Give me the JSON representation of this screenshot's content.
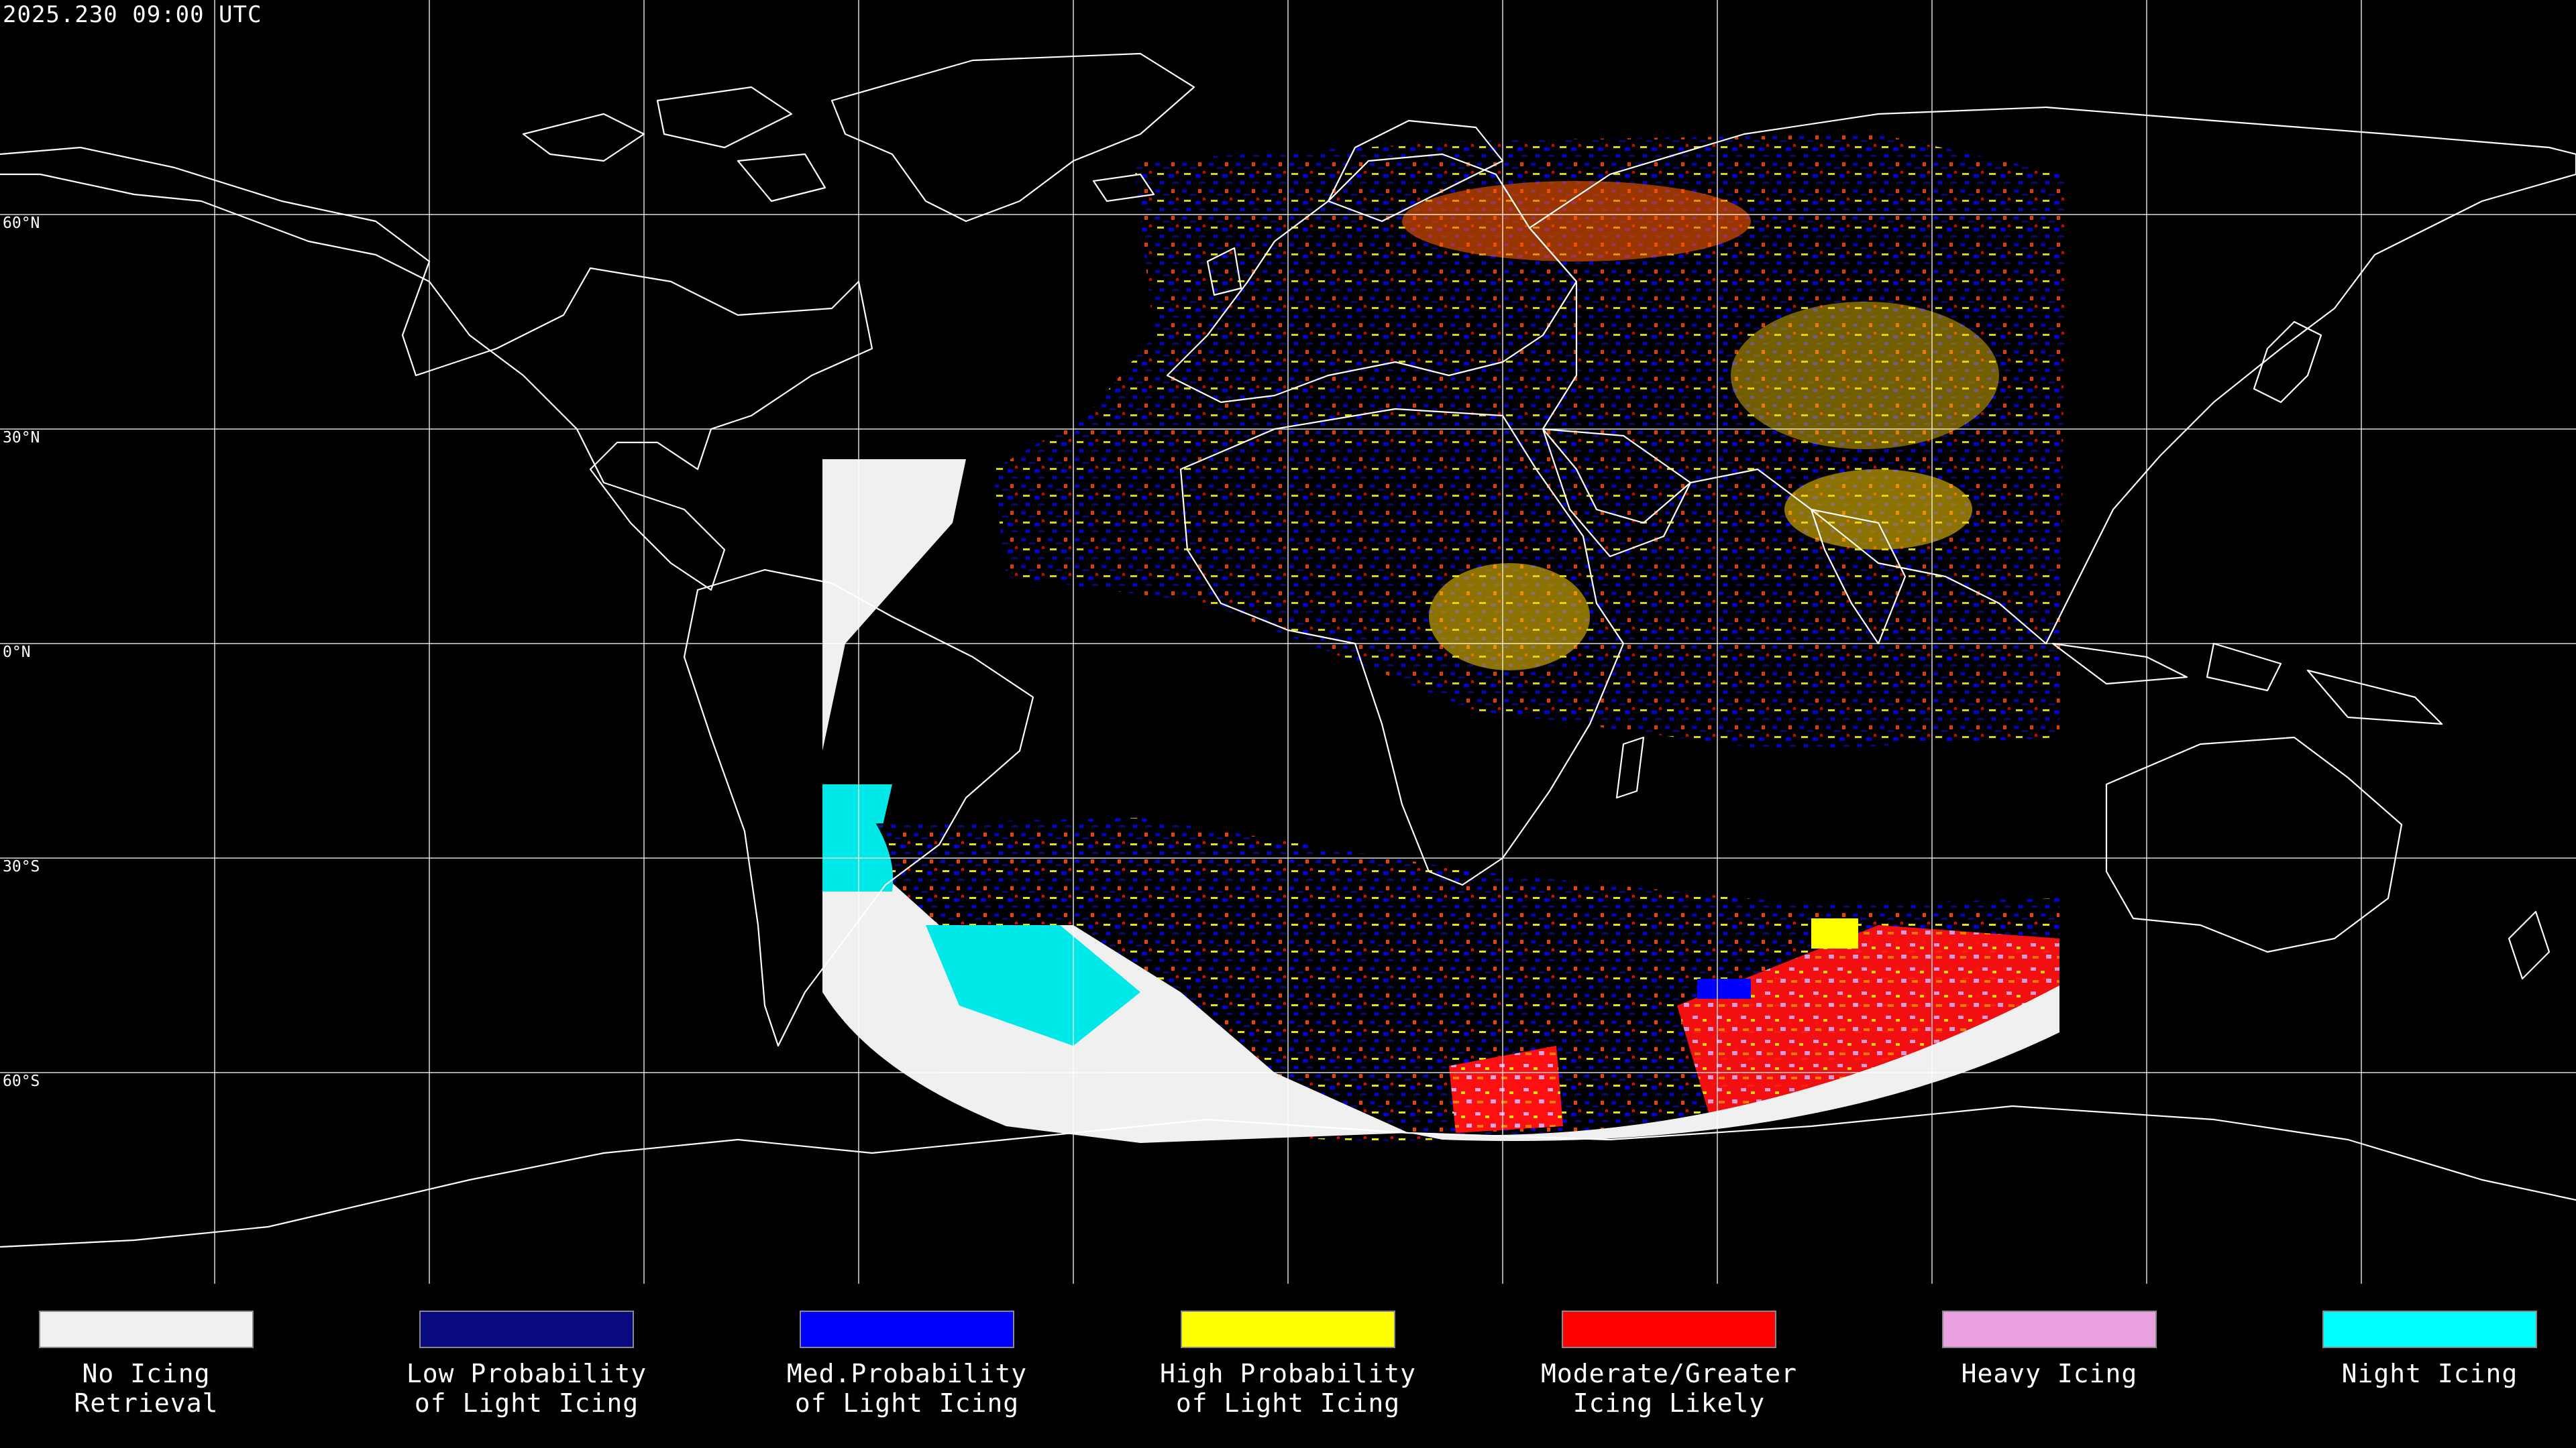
{
  "header": {
    "timestamp": "2025.230 09:00 UTC"
  },
  "graticule": {
    "lat_labels": [
      "60°N",
      "30°N",
      "0°N",
      "30°S",
      "60°S"
    ]
  },
  "legend": {
    "items": [
      {
        "label": "No Icing\nRetrieval",
        "color": "#f0f0f0"
      },
      {
        "label": "Low Probability\nof Light Icing",
        "color": "#0a0a80"
      },
      {
        "label": "Med.Probability\nof Light Icing",
        "color": "#0000ff"
      },
      {
        "label": "High Probability\nof Light Icing",
        "color": "#ffff00"
      },
      {
        "label": "Moderate/Greater\nIcing Likely",
        "color": "#ff0000"
      },
      {
        "label": "Heavy Icing",
        "color": "#e8a0e0"
      },
      {
        "label": "Night Icing",
        "color": "#00ffff"
      }
    ]
  },
  "colors": {
    "background": "#000000",
    "coastline": "#ffffff",
    "gridline": "#ffffff"
  }
}
